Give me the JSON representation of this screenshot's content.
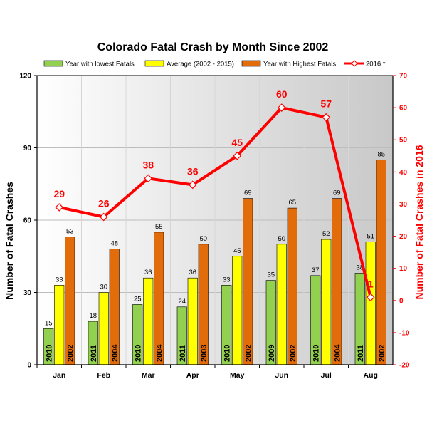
{
  "chart_data": {
    "type": "bar",
    "title": "Colorado Fatal Crash by Month Since 2002",
    "xlabel": "",
    "ylabel": "Number of Fatal Crashes",
    "y2label": "Number of Fatal Crashes in 2016",
    "ylim": [
      0,
      120
    ],
    "y2lim": [
      -20,
      70
    ],
    "yticks": [
      0,
      30,
      60,
      90,
      120
    ],
    "y2ticks": [
      -20,
      -10,
      0,
      10,
      20,
      30,
      40,
      50,
      60,
      70
    ],
    "grid": true,
    "legend_position": "top",
    "categories": [
      "Jan",
      "Feb",
      "Mar",
      "Apr",
      "May",
      "Jun",
      "Jul",
      "Aug"
    ],
    "series": [
      {
        "name": "Year with lowest Fatals",
        "kind": "bar",
        "axis": "left",
        "color": "#92d050",
        "values": [
          15,
          18,
          25,
          24,
          33,
          35,
          37,
          38
        ],
        "year_labels": [
          "2010",
          "2011",
          "2010",
          "2011",
          "2010",
          "2009",
          "2010",
          "2011"
        ]
      },
      {
        "name": "Average (2002 - 2015)",
        "kind": "bar",
        "axis": "left",
        "color": "#ffff00",
        "values": [
          33,
          30,
          36,
          36,
          45,
          50,
          52,
          51
        ],
        "year_labels": []
      },
      {
        "name": "Year with Highest Fatals",
        "kind": "bar",
        "axis": "left",
        "color": "#e26b0a",
        "values": [
          53,
          48,
          55,
          50,
          69,
          65,
          69,
          85
        ],
        "year_labels": [
          "2002",
          "2004",
          "2004",
          "2003",
          "2002",
          "2002",
          "2004",
          "2002"
        ]
      },
      {
        "name": "2016 *",
        "kind": "line",
        "axis": "right",
        "color": "#ff0000",
        "values": [
          29,
          26,
          38,
          36,
          45,
          60,
          57,
          1
        ]
      }
    ]
  }
}
